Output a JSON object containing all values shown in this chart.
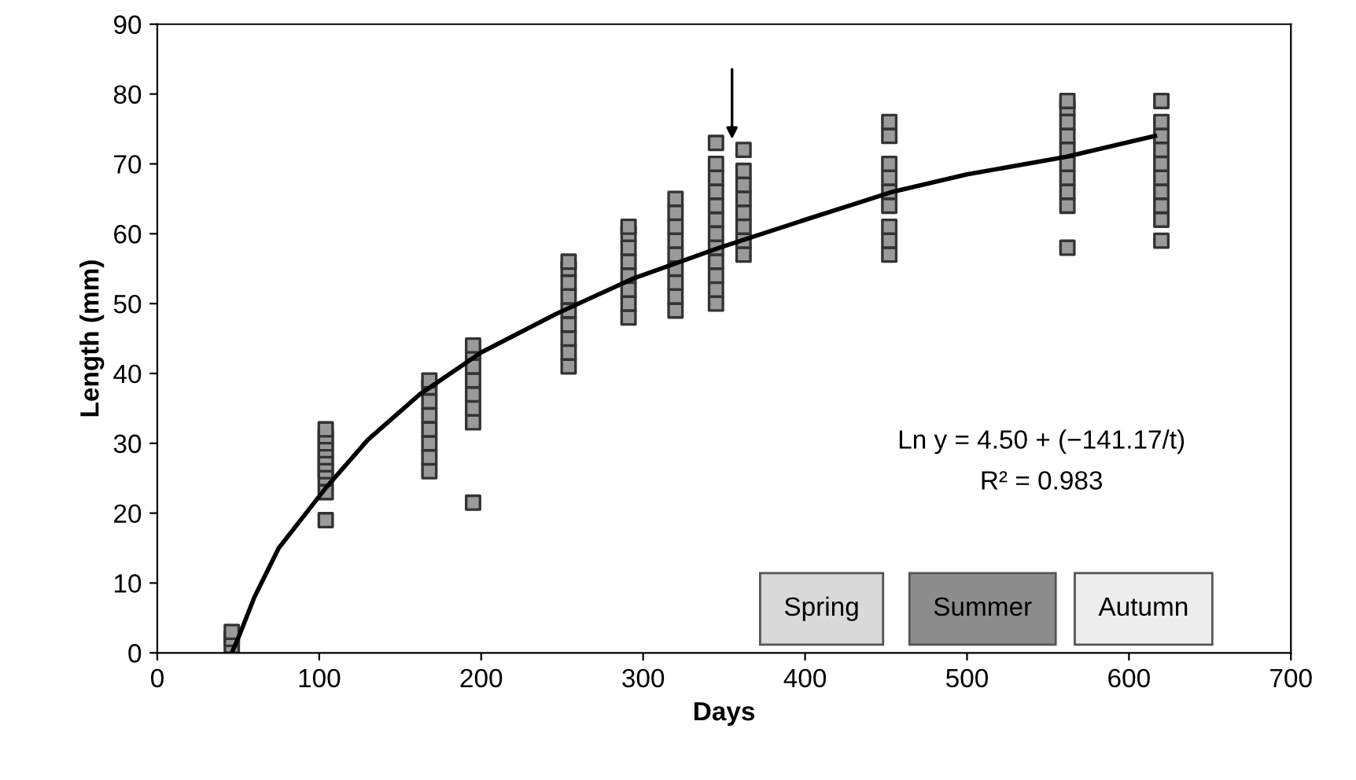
{
  "chart_data": {
    "type": "scatter",
    "xlabel": "Days",
    "ylabel": "Length (mm)",
    "xlim": [
      0,
      700
    ],
    "xticks": [
      0,
      100,
      200,
      300,
      400,
      500,
      600,
      700
    ],
    "ylim": [
      0,
      90
    ],
    "yticks": [
      0,
      10,
      20,
      30,
      40,
      50,
      60,
      70,
      80,
      90
    ],
    "grid": false,
    "legend": false,
    "series": [
      {
        "marker": "square",
        "color": "#333333",
        "x": [
          46,
          46,
          46,
          104,
          104,
          104,
          104,
          104,
          104,
          104,
          104,
          104,
          104,
          168,
          168,
          168,
          168,
          168,
          168,
          168,
          168,
          195,
          195,
          195,
          195,
          195,
          195,
          195,
          195,
          254,
          254,
          254,
          254,
          254,
          254,
          254,
          254,
          254,
          291,
          291,
          291,
          291,
          291,
          291,
          291,
          291,
          320,
          320,
          320,
          320,
          320,
          320,
          320,
          320,
          320,
          345,
          345,
          345,
          345,
          345,
          345,
          345,
          345,
          345,
          345,
          345,
          345,
          362,
          362,
          362,
          362,
          362,
          362,
          362,
          362,
          452,
          452,
          452,
          452,
          452,
          452,
          452,
          452,
          452,
          562,
          562,
          562,
          562,
          562,
          562,
          562,
          562,
          562,
          562,
          620,
          620,
          620,
          620,
          620,
          620,
          620,
          620,
          620,
          620
        ],
        "values": [
          1,
          2,
          3,
          19,
          23,
          25,
          26,
          27,
          28,
          29,
          30,
          31,
          32,
          26,
          28,
          30,
          32,
          34,
          36,
          38,
          39,
          21.5,
          33,
          35,
          37,
          39,
          41,
          43,
          44,
          41,
          43,
          45,
          47,
          49,
          51,
          53,
          55,
          56,
          48,
          50,
          52,
          54,
          56,
          58,
          60,
          61,
          49,
          51,
          53,
          55,
          57,
          59,
          61,
          63,
          65,
          50,
          52,
          54,
          56,
          58,
          60,
          62,
          64,
          66,
          68,
          70,
          73,
          57,
          59,
          61,
          63,
          65,
          67,
          69,
          72,
          57,
          59,
          61,
          64,
          66,
          68,
          70,
          74,
          76,
          58,
          64,
          66,
          68,
          70,
          72,
          74,
          76,
          78,
          79,
          59,
          62,
          64,
          66,
          68,
          70,
          72,
          74,
          76,
          79
        ]
      },
      {
        "type": "line",
        "color": "#000000",
        "line_style": "solid",
        "marker": "none",
        "x": [
          46,
          51,
          60,
          75,
          104,
          130,
          162,
          200,
          246,
          294,
          347,
          400,
          454,
          500,
          561,
          616
        ],
        "values": [
          0,
          2.7,
          8,
          15,
          23.6,
          30.5,
          37,
          43,
          48.5,
          53.6,
          58,
          62,
          66,
          68.5,
          71,
          74
        ]
      }
    ],
    "annotations": [
      "Ln y = 4.50 + (−141.17/t)",
      "R² = 0.983",
      "Spring",
      "Summer",
      "Autumn"
    ]
  }
}
